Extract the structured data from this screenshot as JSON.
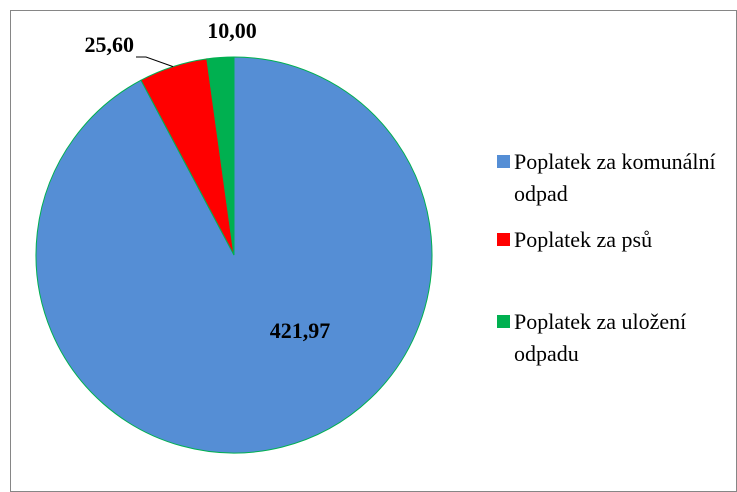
{
  "chart_data": {
    "type": "pie",
    "categories": [
      "Poplatek za komunální odpad",
      "Poplatek za psů",
      "Poplatek za uložení odpadu"
    ],
    "values": [
      421.97,
      25.6,
      10.0
    ],
    "value_labels": [
      "421,97",
      "25,60",
      "10,00"
    ],
    "colors": [
      "#558ed5",
      "#ff0000",
      "#00b050"
    ],
    "legend": "right"
  }
}
